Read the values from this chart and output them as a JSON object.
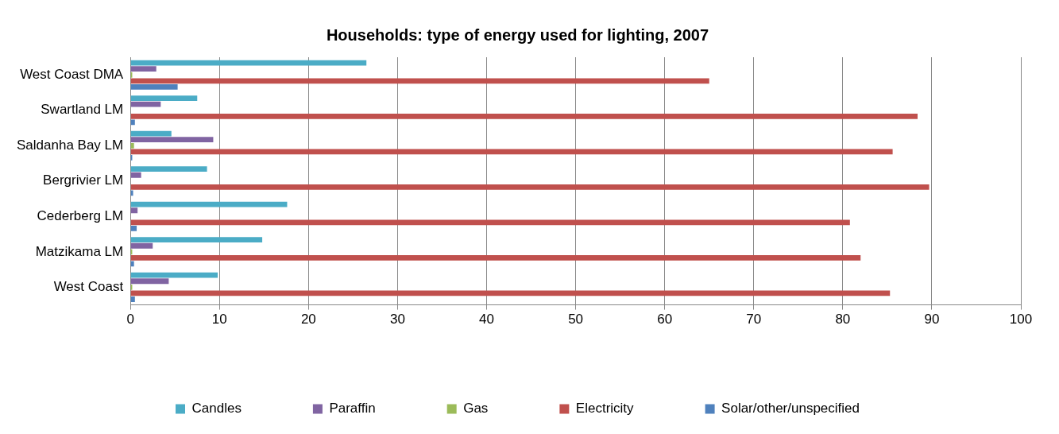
{
  "chart_data": {
    "type": "bar",
    "orientation": "horizontal",
    "title": "Households: type of energy used for lighting, 2007",
    "categories": [
      "West Coast DMA",
      "Swartland LM",
      "Saldanha Bay LM",
      "Bergrivier LM",
      "Cederberg LM",
      "Matzikama LM",
      "West Coast"
    ],
    "series": [
      {
        "name": "Candles",
        "color": "#4bacc6",
        "values": [
          26.5,
          7.5,
          4.6,
          8.6,
          17.6,
          14.8,
          9.8
        ]
      },
      {
        "name": "Paraffin",
        "color": "#8064a2",
        "values": [
          2.9,
          3.4,
          9.3,
          1.2,
          0.8,
          2.5,
          4.3
        ]
      },
      {
        "name": "Gas",
        "color": "#9bbb59",
        "values": [
          0.2,
          null,
          0.4,
          null,
          null,
          0.2,
          0.2
        ]
      },
      {
        "name": "Electricity",
        "color": "#c0504d",
        "values": [
          65.0,
          88.4,
          85.6,
          89.7,
          80.8,
          82.0,
          85.3
        ]
      },
      {
        "name": "Solar/other/unspecified",
        "color": "#4f81bd",
        "values": [
          5.3,
          0.5,
          0.2,
          0.3,
          0.7,
          0.4,
          0.5
        ]
      }
    ],
    "xlim": [
      0,
      100
    ],
    "xticks": [
      0,
      10,
      20,
      30,
      40,
      50,
      60,
      70,
      80,
      90,
      100
    ],
    "grid": "x",
    "legend": "bottom"
  }
}
